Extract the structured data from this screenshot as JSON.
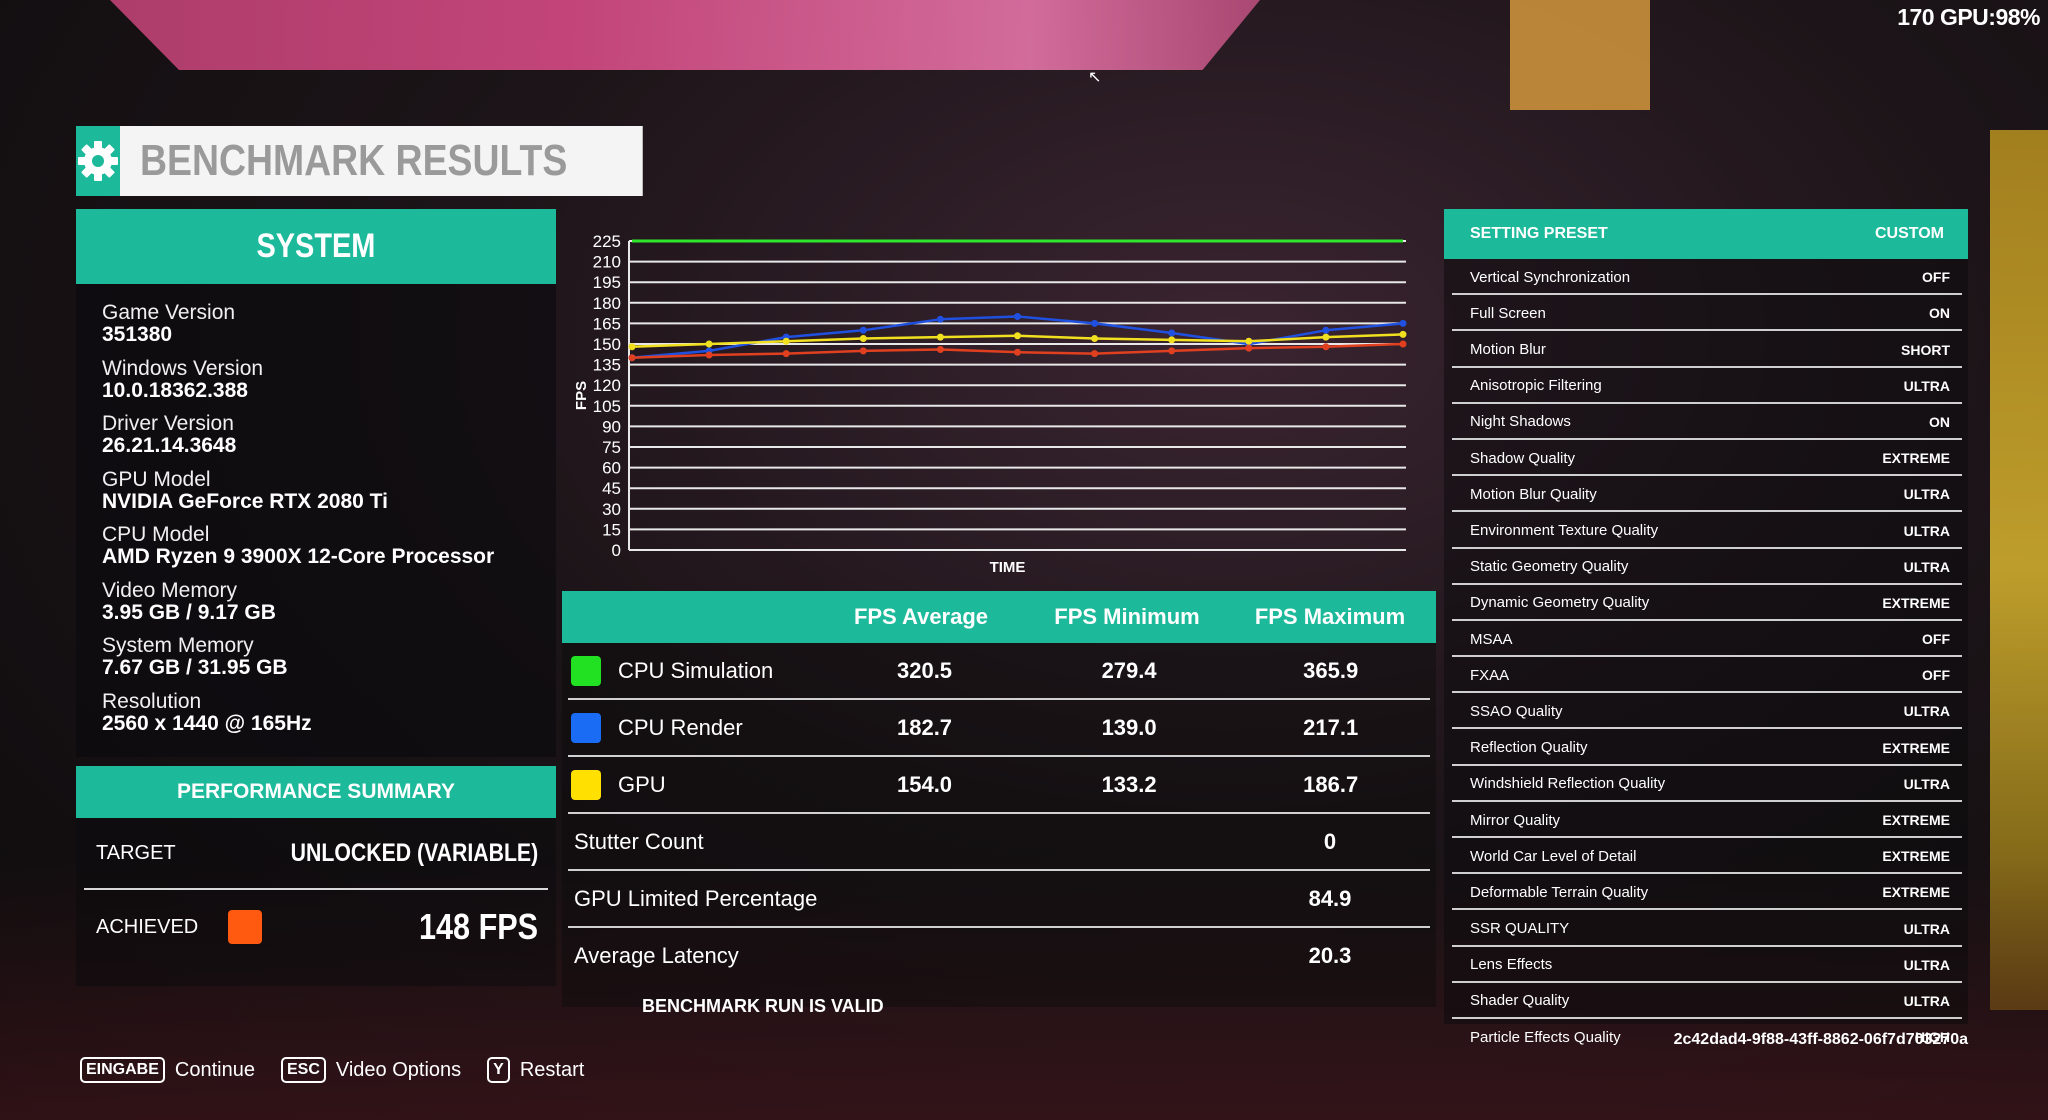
{
  "overlay": {
    "fps_counter": "170 GPU:98%"
  },
  "header": {
    "title": "BENCHMARK RESULTS",
    "icon": "gear-icon"
  },
  "system": {
    "title": "SYSTEM",
    "items": [
      {
        "label": "Game Version",
        "value": "351380"
      },
      {
        "label": "Windows Version",
        "value": "10.0.18362.388"
      },
      {
        "label": "Driver Version",
        "value": "26.21.14.3648"
      },
      {
        "label": "GPU Model",
        "value": "NVIDIA GeForce RTX 2080 Ti"
      },
      {
        "label": "CPU Model",
        "value": "AMD Ryzen 9 3900X 12-Core Processor"
      },
      {
        "label": "Video Memory",
        "value": "3.95 GB / 9.17 GB"
      },
      {
        "label": "System Memory",
        "value": "7.67 GB / 31.95 GB"
      },
      {
        "label": "Resolution",
        "value": "2560 x 1440 @ 165Hz"
      }
    ]
  },
  "performance": {
    "title": "PERFORMANCE SUMMARY",
    "target_label": "TARGET",
    "target_value": "UNLOCKED (VARIABLE)",
    "achieved_label": "ACHIEVED",
    "achieved_value": "148 FPS",
    "achieved_color": "#ff5a10"
  },
  "chart_data": {
    "type": "line",
    "ylabel": "FPS",
    "xlabel": "TIME",
    "ylim": [
      0,
      225
    ],
    "yticks": [
      0,
      15,
      30,
      45,
      60,
      75,
      90,
      105,
      120,
      135,
      150,
      165,
      180,
      195,
      210,
      225
    ],
    "series": [
      {
        "name": "CPU Simulation",
        "color": "#2ee62e",
        "values": [
          225,
          225,
          225,
          225,
          225
        ]
      },
      {
        "name": "CPU Render",
        "color": "#2050e0",
        "values": [
          140,
          145,
          155,
          160,
          168,
          170,
          165,
          158,
          150,
          160,
          165
        ]
      },
      {
        "name": "GPU",
        "color": "#f0e020",
        "values": [
          148,
          150,
          152,
          154,
          155,
          156,
          154,
          153,
          152,
          155,
          157
        ]
      },
      {
        "color": "#e04020",
        "values": [
          140,
          142,
          143,
          145,
          146,
          144,
          143,
          145,
          147,
          148,
          150
        ]
      }
    ]
  },
  "results": {
    "headers": [
      "FPS Average",
      "FPS Minimum",
      "FPS Maximum"
    ],
    "rows": [
      {
        "name": "CPU Simulation",
        "color": "#22e022",
        "avg": "320.5",
        "min": "279.4",
        "max": "365.9"
      },
      {
        "name": "CPU Render",
        "color": "#1a6cf5",
        "avg": "182.7",
        "min": "139.0",
        "max": "217.1"
      },
      {
        "name": "GPU",
        "color": "#ffe000",
        "avg": "154.0",
        "min": "133.2",
        "max": "186.7"
      }
    ],
    "stats": [
      {
        "label": "Stutter Count",
        "value": "0"
      },
      {
        "label": "GPU Limited Percentage",
        "value": "84.9"
      },
      {
        "label": "Average Latency",
        "value": "20.3"
      }
    ],
    "valid_text": "BENCHMARK RUN IS VALID"
  },
  "settings": {
    "header_label": "SETTING PRESET",
    "header_value": "CUSTOM",
    "items": [
      {
        "label": "Vertical Synchronization",
        "value": "OFF"
      },
      {
        "label": "Full Screen",
        "value": "ON"
      },
      {
        "label": "Motion Blur",
        "value": "SHORT"
      },
      {
        "label": "Anisotropic Filtering",
        "value": "ULTRA"
      },
      {
        "label": "Night Shadows",
        "value": "ON"
      },
      {
        "label": "Shadow Quality",
        "value": "EXTREME"
      },
      {
        "label": "Motion Blur Quality",
        "value": "ULTRA"
      },
      {
        "label": "Environment Texture Quality",
        "value": "ULTRA"
      },
      {
        "label": "Static Geometry Quality",
        "value": "ULTRA"
      },
      {
        "label": "Dynamic Geometry Quality",
        "value": "EXTREME"
      },
      {
        "label": "MSAA",
        "value": "OFF"
      },
      {
        "label": "FXAA",
        "value": "OFF"
      },
      {
        "label": "SSAO Quality",
        "value": "ULTRA"
      },
      {
        "label": "Reflection Quality",
        "value": "EXTREME"
      },
      {
        "label": "Windshield Reflection Quality",
        "value": "ULTRA"
      },
      {
        "label": "Mirror Quality",
        "value": "EXTREME"
      },
      {
        "label": "World Car Level of Detail",
        "value": "EXTREME"
      },
      {
        "label": "Deformable Terrain Quality",
        "value": "EXTREME"
      },
      {
        "label": "SSR QUALITY",
        "value": "ULTRA"
      },
      {
        "label": "Lens Effects",
        "value": "ULTRA"
      },
      {
        "label": "Shader Quality",
        "value": "ULTRA"
      },
      {
        "label": "Particle Effects Quality",
        "value": "HIGH"
      }
    ],
    "hash": "2c42dad4-9f88-43ff-8862-06f7d703270a"
  },
  "footer": [
    {
      "key": "EINGABE",
      "label": "Continue"
    },
    {
      "key": "ESC",
      "label": "Video Options"
    },
    {
      "key": "Y",
      "label": "Restart"
    }
  ],
  "colors": {
    "accent": "#1cb99a"
  }
}
